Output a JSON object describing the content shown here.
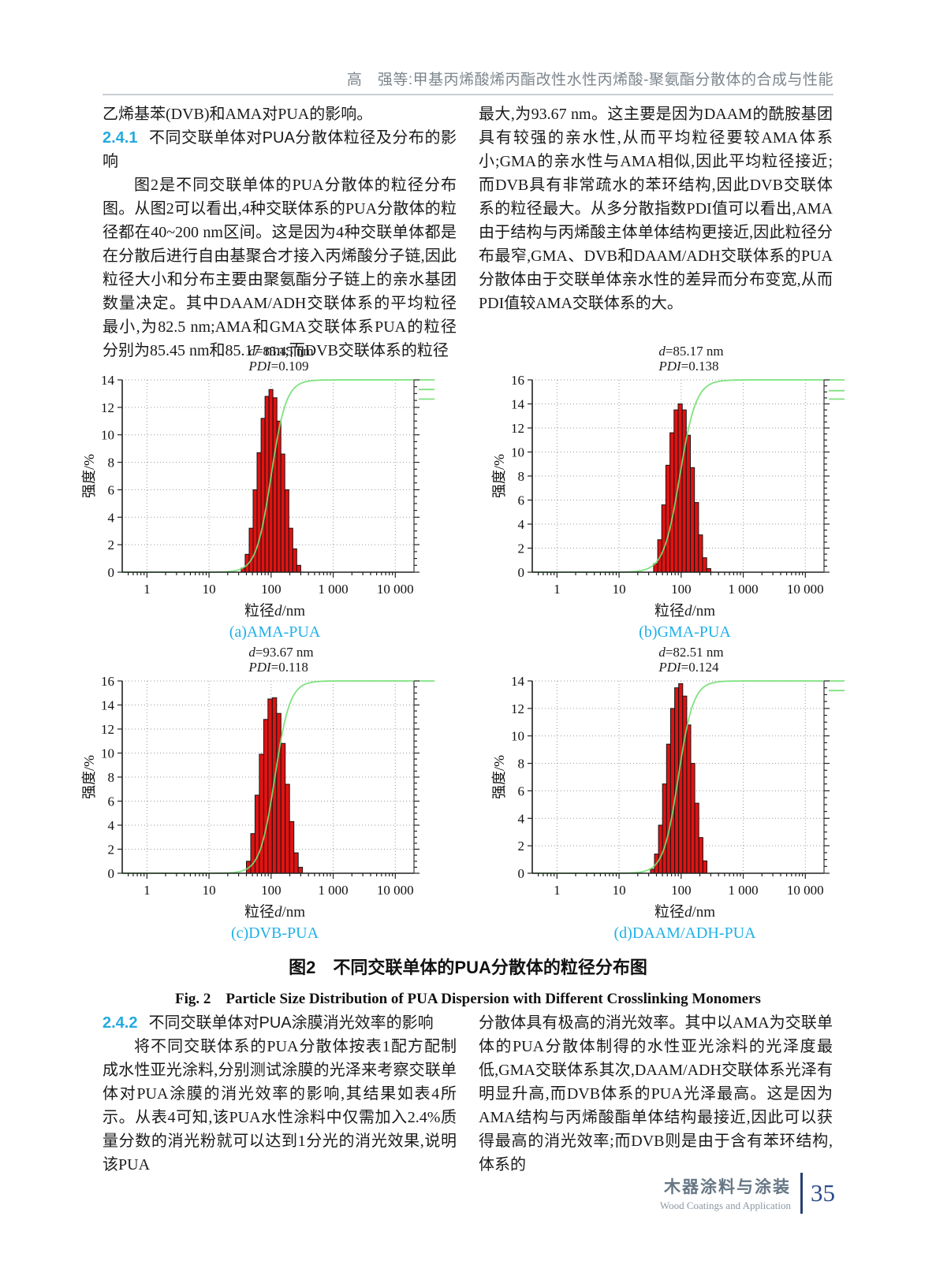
{
  "page": {
    "header": {
      "title": "高　强等:甲基丙烯酸烯丙酯改性水性丙烯酸-聚氨酯分散体的合成与性能"
    },
    "footer": {
      "journal_cn": "木器涂料与涂装",
      "journal_en": "Wood Coatings and Application",
      "page_number": "35"
    }
  },
  "content": {
    "col1_top": {
      "para0": "乙烯基苯(DVB)和AMA对PUA的影响。",
      "heading_num": "2.4.1",
      "heading_text": "不同交联单体对PUA分散体粒径及分布的影响",
      "para1": "图2是不同交联单体的PUA分散体的粒径分布图。从图2可以看出,4种交联体系的PUA分散体的粒径都在40~200 nm区间。这是因为4种交联单体都是在分散后进行自由基聚合才接入丙烯酸分子链,因此粒径大小和分布主要由聚氨酯分子链上的亲水基团数量决定。其中DAAM/ADH交联体系的平均粒径最小,为82.5 nm;AMA和GMA交联体系PUA的粒径分别为85.45 nm和85.17 nm;而DVB交联体系的粒径"
    },
    "col2_top": {
      "para1": "最大,为93.67 nm。这主要是因为DAAM的酰胺基团具有较强的亲水性,从而平均粒径要较AMA体系小;GMA的亲水性与AMA相似,因此平均粒径接近;而DVB具有非常疏水的苯环结构,因此DVB交联体系的粒径最大。从多分散指数PDI值可以看出,AMA由于结构与丙烯酸主体单体结构更接近,因此粒径分布最窄,GMA、DVB和DAAM/ADH交联体系的PUA分散体由于交联单体亲水性的差异而分布变宽,从而PDI值较AMA交联体系的大。"
    },
    "col1_bottom": {
      "heading_num": "2.4.2",
      "heading_text": "不同交联单体对PUA涂膜消光效率的影响",
      "para1": "将不同交联体系的PUA分散体按表1配方配制成水性亚光涂料,分别测试涂膜的光泽来考察交联单体对PUA涂膜的消光效率的影响,其结果如表4所示。从表4可知,该PUA水性涂料中仅需加入2.4%质量分数的消光粉就可以达到1分光的消光效果,说明该PUA"
    },
    "col2_bottom": {
      "para1": "分散体具有极高的消光效率。其中以AMA为交联单体的PUA分散体制得的水性亚光涂料的光泽度最低,GMA交联体系其次,DAAM/ADH交联体系光泽有明显升高,而DVB体系的PUA光泽最高。这是因为AMA结构与丙烯酸酯单体结构最接近,因此可以获得最高的消光效率;而DVB则是由于含有苯环结构,体系的"
    }
  },
  "figure": {
    "caption_cn": "图2　不同交联单体的PUA分散体的粒径分布图",
    "caption_en": "Fig. 2　Particle Size Distribution of PUA Dispersion with Different Crosslinking Monomers"
  },
  "chart_data": [
    {
      "type": "bar",
      "subcaption": "(a)AMA-PUA",
      "d_label": "d",
      "d_text": "=85.45 nm",
      "pdi_label": "PDI",
      "pdi_text": "=0.109",
      "ylabel": "强度/%",
      "xlabel_prefix": "粒径",
      "xlabel_italic": "d",
      "xlabel_suffix": "/nm",
      "xticks": [
        1,
        10,
        100,
        1000,
        10000
      ],
      "xticklabels": [
        "1",
        "10",
        "100",
        "1 000",
        "10 000"
      ],
      "xrange": [
        0.4,
        20000
      ],
      "ylim": 14,
      "ytick_step": 2,
      "bar_edges_nm": [
        33,
        300
      ],
      "values": [
        0.3,
        1.3,
        3.2,
        6.0,
        8.7,
        11.2,
        12.8,
        13.3,
        12.7,
        11.0,
        8.6,
        6.0,
        3.2,
        1.7,
        0.5
      ],
      "curve_center_nm": 100,
      "curve_sigma_log10": 0.12,
      "right_marks": [
        14,
        13.3,
        12.6
      ],
      "bar_color": "#e01212",
      "curve_color": "#74e074",
      "grid": true
    },
    {
      "type": "bar",
      "subcaption": "(b)GMA-PUA",
      "d_label": "d",
      "d_text": "=85.17 nm",
      "pdi_label": "PDI",
      "pdi_text": "=0.138",
      "ylabel": "强度/%",
      "xlabel_prefix": "粒径",
      "xlabel_italic": "d",
      "xlabel_suffix": "/nm",
      "xticks": [
        1,
        10,
        100,
        1000,
        10000
      ],
      "xticklabels": [
        "1",
        "10",
        "100",
        "1 000",
        "10 000"
      ],
      "xrange": [
        0.4,
        20000
      ],
      "ylim": 16,
      "ytick_step": 2,
      "bar_edges_nm": [
        36,
        300
      ],
      "values": [
        0.7,
        2.7,
        5.6,
        8.9,
        11.6,
        13.5,
        14.0,
        13.5,
        11.4,
        8.7,
        5.8,
        3.1,
        1.2,
        0.3
      ],
      "curve_center_nm": 95,
      "curve_sigma_log10": 0.13,
      "right_marks": [
        16,
        15.1,
        14.4
      ],
      "bar_color": "#e01212",
      "curve_color": "#74e074",
      "grid": true
    },
    {
      "type": "bar",
      "subcaption": "(c)DVB-PUA",
      "d_label": "d",
      "d_text": "=93.67 nm",
      "pdi_label": "PDI",
      "pdi_text": "=0.118",
      "ylabel": "强度/%",
      "xlabel_prefix": "粒径",
      "xlabel_italic": "d",
      "xlabel_suffix": "/nm",
      "xticks": [
        1,
        10,
        100,
        1000,
        10000
      ],
      "xticklabels": [
        "1",
        "10",
        "100",
        "1 000",
        "10 000"
      ],
      "xrange": [
        0.4,
        20000
      ],
      "ylim": 16,
      "ytick_step": 2,
      "bar_edges_nm": [
        40,
        320
      ],
      "values": [
        1.0,
        3.3,
        6.5,
        9.9,
        12.8,
        14.5,
        14.6,
        13.3,
        10.8,
        7.4,
        4.3,
        1.7,
        0.5
      ],
      "curve_center_nm": 115,
      "curve_sigma_log10": 0.12,
      "right_marks": [
        16
      ],
      "bar_color": "#e01212",
      "curve_color": "#74e074",
      "grid": true
    },
    {
      "type": "bar",
      "subcaption": "(d)DAAM/ADH-PUA",
      "d_label": "d",
      "d_text": "=82.51 nm",
      "pdi_label": "PDI",
      "pdi_text": "=0.124",
      "ylabel": "强度/%",
      "xlabel_prefix": "粒径",
      "xlabel_italic": "d",
      "xlabel_suffix": "/nm",
      "xticks": [
        1,
        10,
        100,
        1000,
        10000
      ],
      "xticklabels": [
        "1",
        "10",
        "100",
        "1 000",
        "10 000"
      ],
      "xrange": [
        0.4,
        20000
      ],
      "ylim": 14,
      "ytick_step": 2,
      "bar_edges_nm": [
        32,
        260
      ],
      "values": [
        0.3,
        1.4,
        3.5,
        6.5,
        9.4,
        12.0,
        13.5,
        13.8,
        12.9,
        10.8,
        8.0,
        5.1,
        2.6,
        0.9
      ],
      "curve_center_nm": 90,
      "curve_sigma_log10": 0.12,
      "right_marks": [
        14,
        13.3
      ],
      "bar_color": "#e01212",
      "curve_color": "#74e074",
      "grid": true
    }
  ]
}
